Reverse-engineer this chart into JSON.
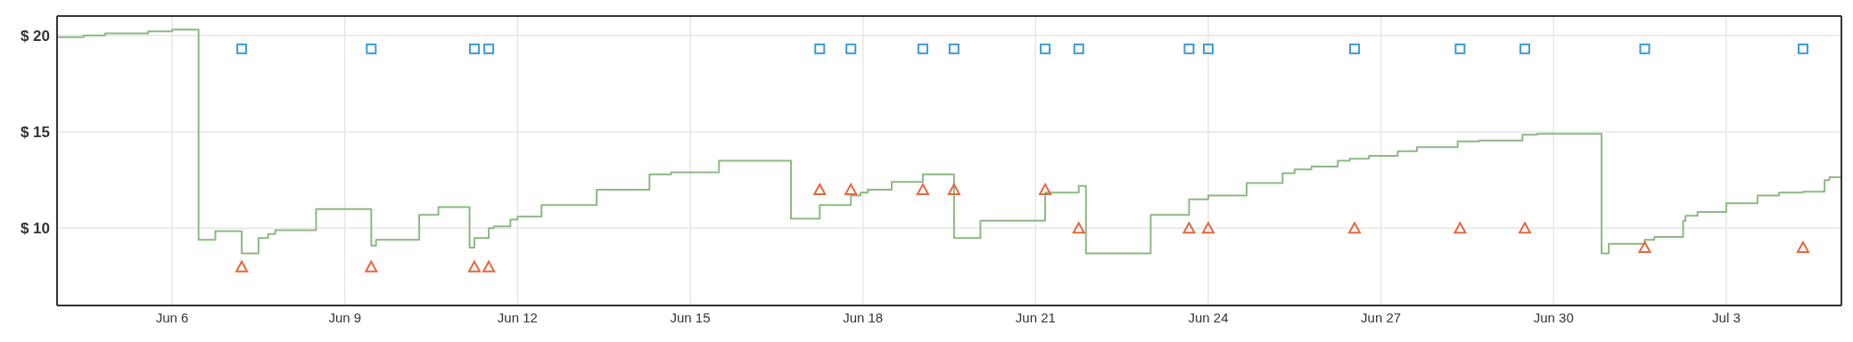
{
  "chart_data": {
    "type": "step",
    "xlim": [
      "--06-04",
      "--07-05"
    ],
    "ylim": [
      6,
      21
    ],
    "xticks": [
      {
        "value": "--06-06",
        "label": "Jun 6"
      },
      {
        "value": "--06-09",
        "label": "Jun 9"
      },
      {
        "value": "--06-12",
        "label": "Jun 12"
      },
      {
        "value": "--06-15",
        "label": "Jun 15"
      },
      {
        "value": "--06-18",
        "label": "Jun 18"
      },
      {
        "value": "--06-21",
        "label": "Jun 21"
      },
      {
        "value": "--06-24",
        "label": "Jun 24"
      },
      {
        "value": "--06-27",
        "label": "Jun 27"
      },
      {
        "value": "--06-30",
        "label": "Jun 30"
      },
      {
        "value": "--07-03",
        "label": "Jul 3"
      }
    ],
    "yticks": [
      {
        "value": 10,
        "label": "$ 10"
      },
      {
        "value": 15,
        "label": "$ 15"
      },
      {
        "value": 20,
        "label": "$ 20"
      }
    ],
    "grid": true,
    "legend": false,
    "series": [
      {
        "color": "#8db883",
        "marker": "none",
        "x": [
          "--06-04T00:00",
          "--06-04T11:00",
          "--06-04T20:00",
          "--06-05T14:00",
          "--06-06T00:00",
          "--06-06T11:00",
          "--06-06T18:00",
          "--06-07T05:00",
          "--06-07T12:00",
          "--06-07T16:00",
          "--06-07T19:00",
          "--06-08T12:00",
          "--06-09T11:00",
          "--06-09T13:00",
          "--06-10T07:00",
          "--06-10T15:00",
          "--06-11T04:00",
          "--06-11T06:00",
          "--06-11T12:00",
          "--06-11T14:00",
          "--06-11T21:00",
          "--06-12T00:00",
          "--06-12T10:00",
          "--06-13T09:00",
          "--06-14T07:00",
          "--06-14T16:00",
          "--06-15T12:00",
          "--06-16T18:00",
          "--06-17T06:00",
          "--06-17T19:00",
          "--06-17T23:00",
          "--06-18T02:00",
          "--06-18T12:00",
          "--06-19T01:00",
          "--06-19T14:00",
          "--06-20T01:00",
          "--06-21T04:00",
          "--06-21T18:00",
          "--06-21T21:00",
          "--06-23T00:00",
          "--06-23T16:00",
          "--06-24T00:00",
          "--06-24T16:00",
          "--06-25T07:00",
          "--06-25T12:00",
          "--06-25T19:00",
          "--06-26T06:00",
          "--06-26T11:00",
          "--06-26T19:00",
          "--06-27T07:00",
          "--06-27T15:00",
          "--06-28T08:00",
          "--06-28T17:00",
          "--06-29T11:00",
          "--06-29T17:00",
          "--06-30T20:00",
          "--06-30T23:00",
          "--07-01T14:00",
          "--07-01T18:00",
          "--07-02T06:00",
          "--07-02T07:00",
          "--07-02T12:00",
          "--07-03T00:00",
          "--07-03T13:00",
          "--07-03T22:00",
          "--07-04T08:00",
          "--07-04T17:00",
          "--07-04T19:00",
          "--07-05T00:00"
        ],
        "values": [
          19.9,
          20.0,
          20.1,
          20.2,
          20.3,
          9.4,
          9.85,
          8.7,
          9.5,
          9.7,
          9.9,
          11.0,
          9.1,
          9.4,
          10.7,
          11.1,
          9.0,
          9.5,
          10.0,
          10.1,
          10.45,
          10.6,
          11.2,
          12.0,
          12.8,
          12.9,
          13.5,
          10.5,
          11.2,
          11.7,
          11.85,
          12.0,
          12.4,
          12.8,
          9.5,
          10.4,
          11.85,
          12.2,
          8.7,
          10.7,
          11.5,
          11.7,
          12.35,
          12.85,
          13.05,
          13.2,
          13.5,
          13.6,
          13.75,
          14.0,
          14.2,
          14.5,
          14.55,
          14.85,
          14.9,
          8.7,
          9.2,
          9.4,
          9.55,
          10.4,
          10.65,
          10.85,
          11.3,
          11.7,
          11.85,
          11.9,
          12.5,
          12.65,
          12.65
        ]
      },
      {
        "type": "scatter",
        "color": "#3a9ad9",
        "marker": "square",
        "x": [
          "--06-07T05:00",
          "--06-09T11:00",
          "--06-11T06:00",
          "--06-11T12:00",
          "--06-17T06:00",
          "--06-17T19:00",
          "--06-19T01:00",
          "--06-19T14:00",
          "--06-21T04:00",
          "--06-21T18:00",
          "--06-23T16:00",
          "--06-24T00:00",
          "--06-26T13:00",
          "--06-28T09:00",
          "--06-29T12:00",
          "--07-01T14:00",
          "--07-04T08:00"
        ],
        "values": [
          19.3,
          19.3,
          19.3,
          19.3,
          19.3,
          19.3,
          19.3,
          19.3,
          19.3,
          19.3,
          19.3,
          19.3,
          19.3,
          19.3,
          19.3,
          19.3,
          19.3
        ]
      },
      {
        "type": "scatter",
        "color": "#e8663d",
        "marker": "triangle",
        "x": [
          "--06-07T05:00",
          "--06-09T11:00",
          "--06-11T06:00",
          "--06-11T12:00",
          "--06-17T06:00",
          "--06-17T19:00",
          "--06-19T01:00",
          "--06-19T14:00",
          "--06-21T04:00",
          "--06-21T18:00",
          "--06-23T16:00",
          "--06-24T00:00",
          "--06-26T13:00",
          "--06-28T09:00",
          "--06-29T12:00",
          "--07-01T14:00",
          "--07-04T08:00"
        ],
        "values": [
          8,
          8,
          8,
          8,
          12,
          12,
          12,
          12,
          12,
          10,
          10,
          10,
          10,
          10,
          10,
          9,
          9
        ]
      }
    ]
  }
}
